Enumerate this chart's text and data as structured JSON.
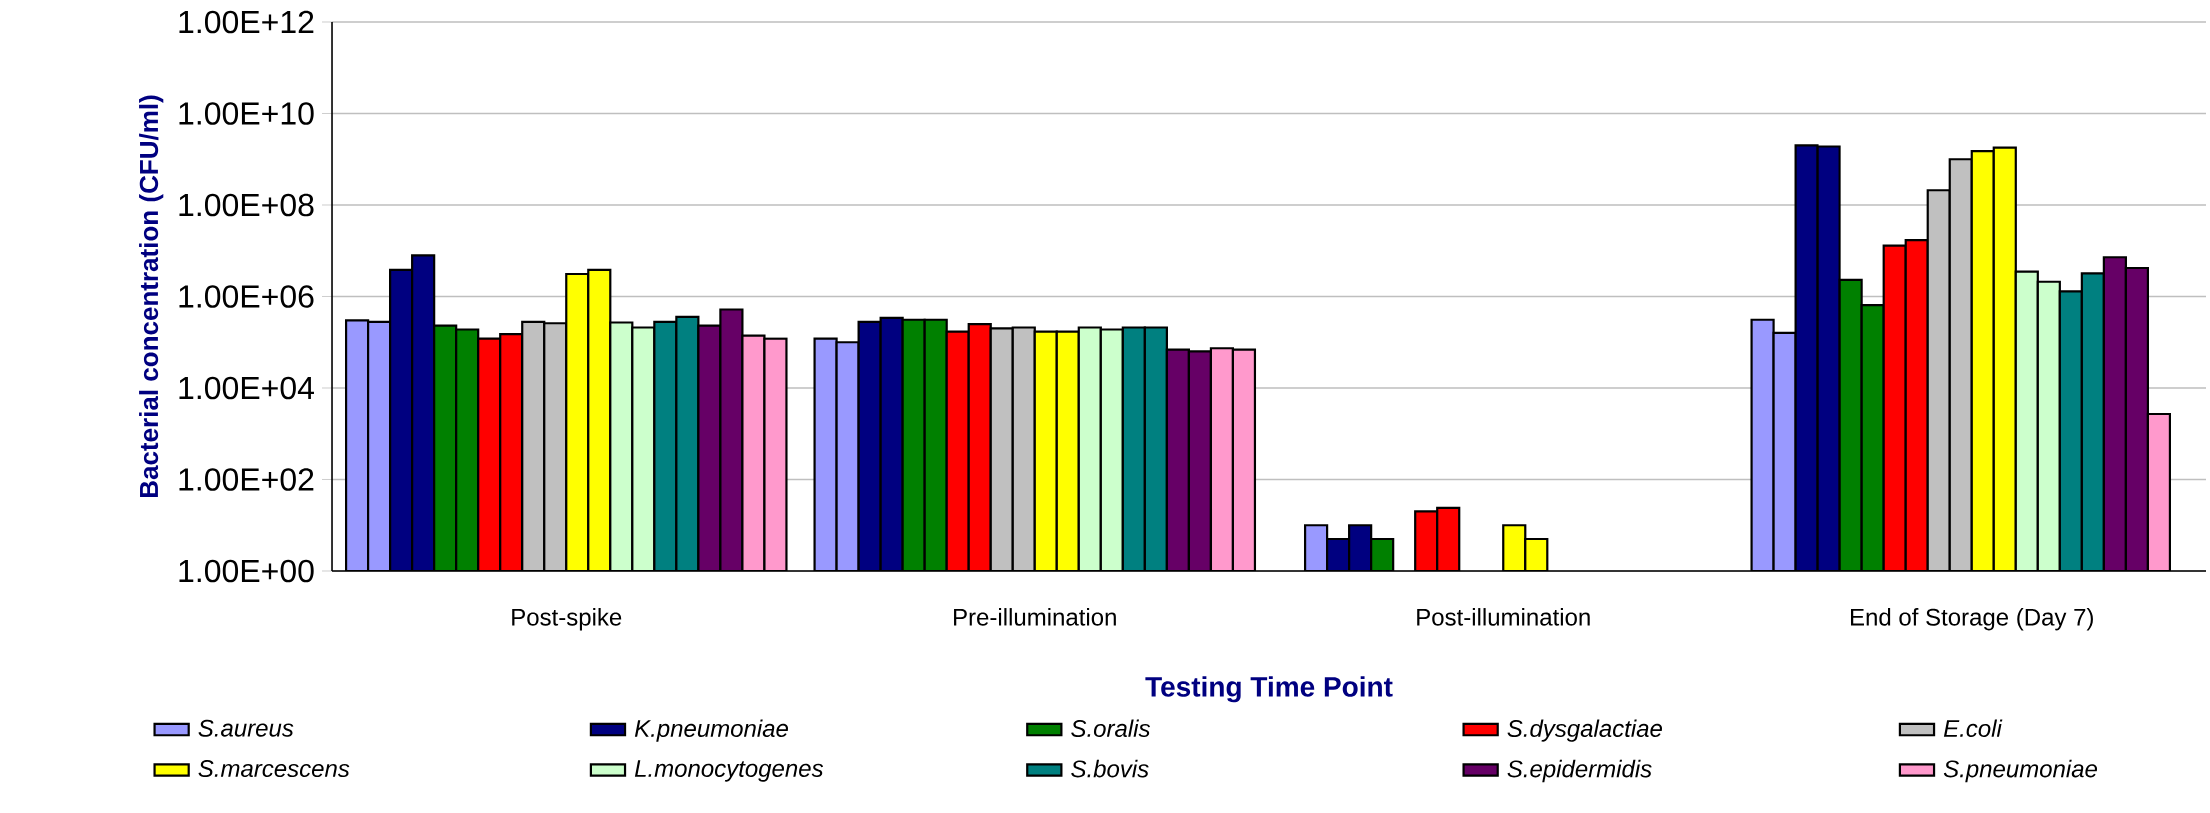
{
  "chart_data": {
    "type": "bar",
    "xlabel": "Testing Time Point",
    "ylabel": "Bacterial concentration (CFU/ml)",
    "categories": [
      "Post-spike",
      "Pre-illumination",
      "Post-illumination",
      "End of Storage (Day 7)"
    ],
    "log": true,
    "grid": "y",
    "legend": "bottom",
    "ylim": [
      1,
      1000000000000.0
    ],
    "yticks": [
      {
        "value": 1,
        "label": "1.00E+00"
      },
      {
        "value": 100,
        "label": "1.00E+02"
      },
      {
        "value": 10000,
        "label": "1.00E+04"
      },
      {
        "value": 1000000.0,
        "label": "1.00E+06"
      },
      {
        "value": 100000000.0,
        "label": "1.00E+08"
      },
      {
        "value": 10000000000.0,
        "label": "1.00E+10"
      },
      {
        "value": 1000000000000.0,
        "label": "1.00E+12"
      }
    ],
    "series": [
      {
        "name": "S.aureus",
        "color": "#9999ff",
        "values": [
          300000.0,
          120000.0,
          null,
          310000.0
        ]
      },
      {
        "color": "#9999ff",
        "values": [
          280000.0,
          100000.0,
          10,
          160000.0
        ]
      },
      {
        "name": "K.pneumoniae",
        "color": "#000080",
        "values": [
          3800000.0,
          280000.0,
          5,
          2000000000.0
        ]
      },
      {
        "color": "#000080",
        "values": [
          7900000.0,
          340000.0,
          10,
          1900000000.0
        ]
      },
      {
        "name": "S.oralis",
        "color": "#008000",
        "values": [
          230000.0,
          310000.0,
          5,
          2300000.0
        ]
      },
      {
        "color": "#008000",
        "values": [
          190000.0,
          310000.0,
          null,
          650000.0
        ]
      },
      {
        "name": "S.dysgalactiae",
        "color": "#ff0000",
        "values": [
          120000.0,
          170000.0,
          20,
          13000000.0
        ]
      },
      {
        "color": "#ff0000",
        "values": [
          150000.0,
          250000.0,
          24,
          17000000.0
        ]
      },
      {
        "name": "E.coli",
        "color": "#c0c0c0",
        "values": [
          280000.0,
          200000.0,
          null,
          210000000.0
        ]
      },
      {
        "color": "#c0c0c0",
        "values": [
          260000.0,
          210000.0,
          null,
          1000000000.0
        ]
      },
      {
        "name": "S.marcescens",
        "color": "#ffff00",
        "values": [
          3100000.0,
          170000.0,
          10,
          1500000000.0
        ]
      },
      {
        "color": "#ffff00",
        "values": [
          3800000.0,
          170000.0,
          5,
          1800000000.0
        ]
      },
      {
        "name": "L.monocytogenes",
        "color": "#ccffcc",
        "values": [
          270000.0,
          210000.0,
          null,
          3500000.0
        ]
      },
      {
        "color": "#ccffcc",
        "values": [
          210000.0,
          190000.0,
          null,
          2100000.0
        ]
      },
      {
        "name": "S.bovis",
        "color": "#008080",
        "values": [
          280000.0,
          210000.0,
          null,
          1300000.0
        ]
      },
      {
        "color": "#008080",
        "values": [
          360000.0,
          210000.0,
          null,
          3200000.0
        ]
      },
      {
        "name": "S.epidermidis",
        "color": "#660066",
        "values": [
          230000.0,
          69000.0,
          null,
          7200000.0
        ]
      },
      {
        "color": "#660066",
        "values": [
          520000.0,
          63000.0,
          null,
          4200000.0
        ]
      },
      {
        "name": "S.pneumoniae",
        "color": "#ff99cc",
        "values": [
          140000.0,
          74000.0,
          null,
          2700.0
        ]
      },
      {
        "color": "#ff99cc",
        "values": [
          120000.0,
          69000.0,
          null,
          null
        ]
      }
    ]
  }
}
